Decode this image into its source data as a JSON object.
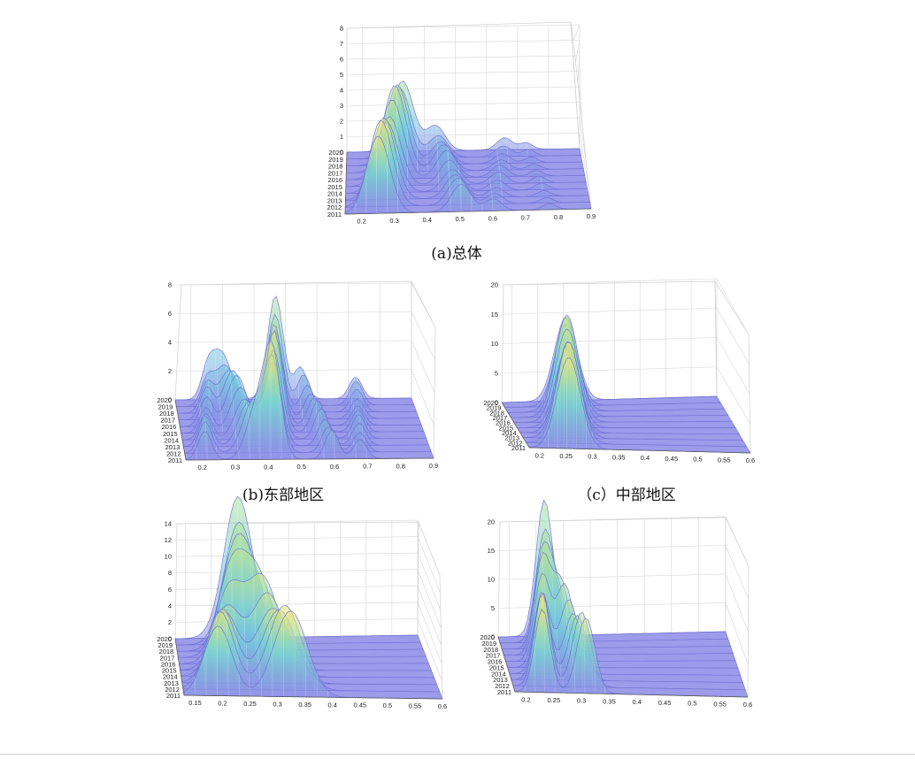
{
  "chart_data": [
    {
      "type": "surface",
      "caption": "(a)总体",
      "x_ticks": [
        "0.2",
        "0.3",
        "0.4",
        "0.5",
        "0.6",
        "0.7",
        "0.8",
        "0.9"
      ],
      "x_range": [
        0.15,
        0.9
      ],
      "z_ticks": [
        "0",
        "1",
        "2",
        "3",
        "4",
        "5",
        "6",
        "7",
        "8"
      ],
      "z_range": [
        0,
        8
      ],
      "years": [
        "2011",
        "2012",
        "2013",
        "2014",
        "2015",
        "2016",
        "2017",
        "2018",
        "2019",
        "2020"
      ],
      "peaks": [
        {
          "x": 0.29,
          "height": 5.0,
          "width": 0.035
        },
        {
          "x": 0.47,
          "height": 1.6,
          "width": 0.03
        },
        {
          "x": 0.63,
          "height": 0.7,
          "width": 0.025
        },
        {
          "x": 0.75,
          "height": 0.4,
          "width": 0.02
        }
      ]
    },
    {
      "type": "surface",
      "caption": "(b)东部地区",
      "x_ticks": [
        "0.2",
        "0.3",
        "0.4",
        "0.5",
        "0.6",
        "0.7",
        "0.8",
        "0.9"
      ],
      "x_range": [
        0.15,
        0.9
      ],
      "z_ticks": [
        "0",
        "2",
        "4",
        "6",
        "8"
      ],
      "z_range": [
        0,
        8
      ],
      "years": [
        "2011",
        "2012",
        "2013",
        "2014",
        "2015",
        "2016",
        "2017",
        "2018",
        "2019",
        "2020"
      ],
      "peaks": [
        {
          "x": 0.23,
          "height": 2.0,
          "width": 0.02
        },
        {
          "x": 0.33,
          "height": 3.2,
          "width": 0.03
        },
        {
          "x": 0.44,
          "height": 6.5,
          "width": 0.025
        },
        {
          "x": 0.57,
          "height": 2.0,
          "width": 0.02
        },
        {
          "x": 0.7,
          "height": 1.5,
          "width": 0.02
        }
      ]
    },
    {
      "type": "surface",
      "caption": "（c）中部地区",
      "x_ticks": [
        "0.2",
        "0.25",
        "0.3",
        "0.35",
        "0.4",
        "0.45",
        "0.5",
        "0.55",
        "0.6"
      ],
      "x_range": [
        0.18,
        0.6
      ],
      "z_ticks": [
        "0",
        "5",
        "10",
        "15",
        "20"
      ],
      "z_range": [
        0,
        20
      ],
      "years": [
        "2011",
        "2012",
        "2013",
        "2014",
        "2015",
        "2016",
        "2017",
        "2018",
        "2019",
        "2020"
      ],
      "peaks": [
        {
          "x": 0.28,
          "height": 15.5,
          "width": 0.022
        }
      ]
    },
    {
      "type": "surface",
      "caption": "",
      "x_ticks": [
        "0.15",
        "0.2",
        "0.25",
        "0.3",
        "0.35",
        "0.4",
        "0.45",
        "0.5",
        "0.55",
        "0.6"
      ],
      "x_range": [
        0.13,
        0.6
      ],
      "z_ticks": [
        "0",
        "2",
        "4",
        "6",
        "8",
        "10",
        "12",
        "14"
      ],
      "z_range": [
        0,
        14
      ],
      "years": [
        "2011",
        "2012",
        "2013",
        "2014",
        "2015",
        "2016",
        "2017",
        "2018",
        "2019",
        "2020"
      ],
      "peaks": [
        {
          "x": 0.22,
          "height": 8.5,
          "width": 0.025
        },
        {
          "x": 0.29,
          "height": 9.5,
          "width": 0.03
        }
      ]
    },
    {
      "type": "surface",
      "caption": "",
      "x_ticks": [
        "0.2",
        "0.25",
        "0.3",
        "0.35",
        "0.4",
        "0.45",
        "0.5",
        "0.55",
        "0.6"
      ],
      "x_range": [
        0.18,
        0.6
      ],
      "z_ticks": [
        "0",
        "5",
        "10",
        "15",
        "20"
      ],
      "z_range": [
        0,
        20
      ],
      "years": [
        "2011",
        "2012",
        "2013",
        "2014",
        "2015",
        "2016",
        "2017",
        "2018",
        "2019",
        "2020"
      ],
      "peaks": [
        {
          "x": 0.245,
          "height": 14.5,
          "width": 0.014
        },
        {
          "x": 0.29,
          "height": 12.0,
          "width": 0.016
        }
      ]
    }
  ]
}
